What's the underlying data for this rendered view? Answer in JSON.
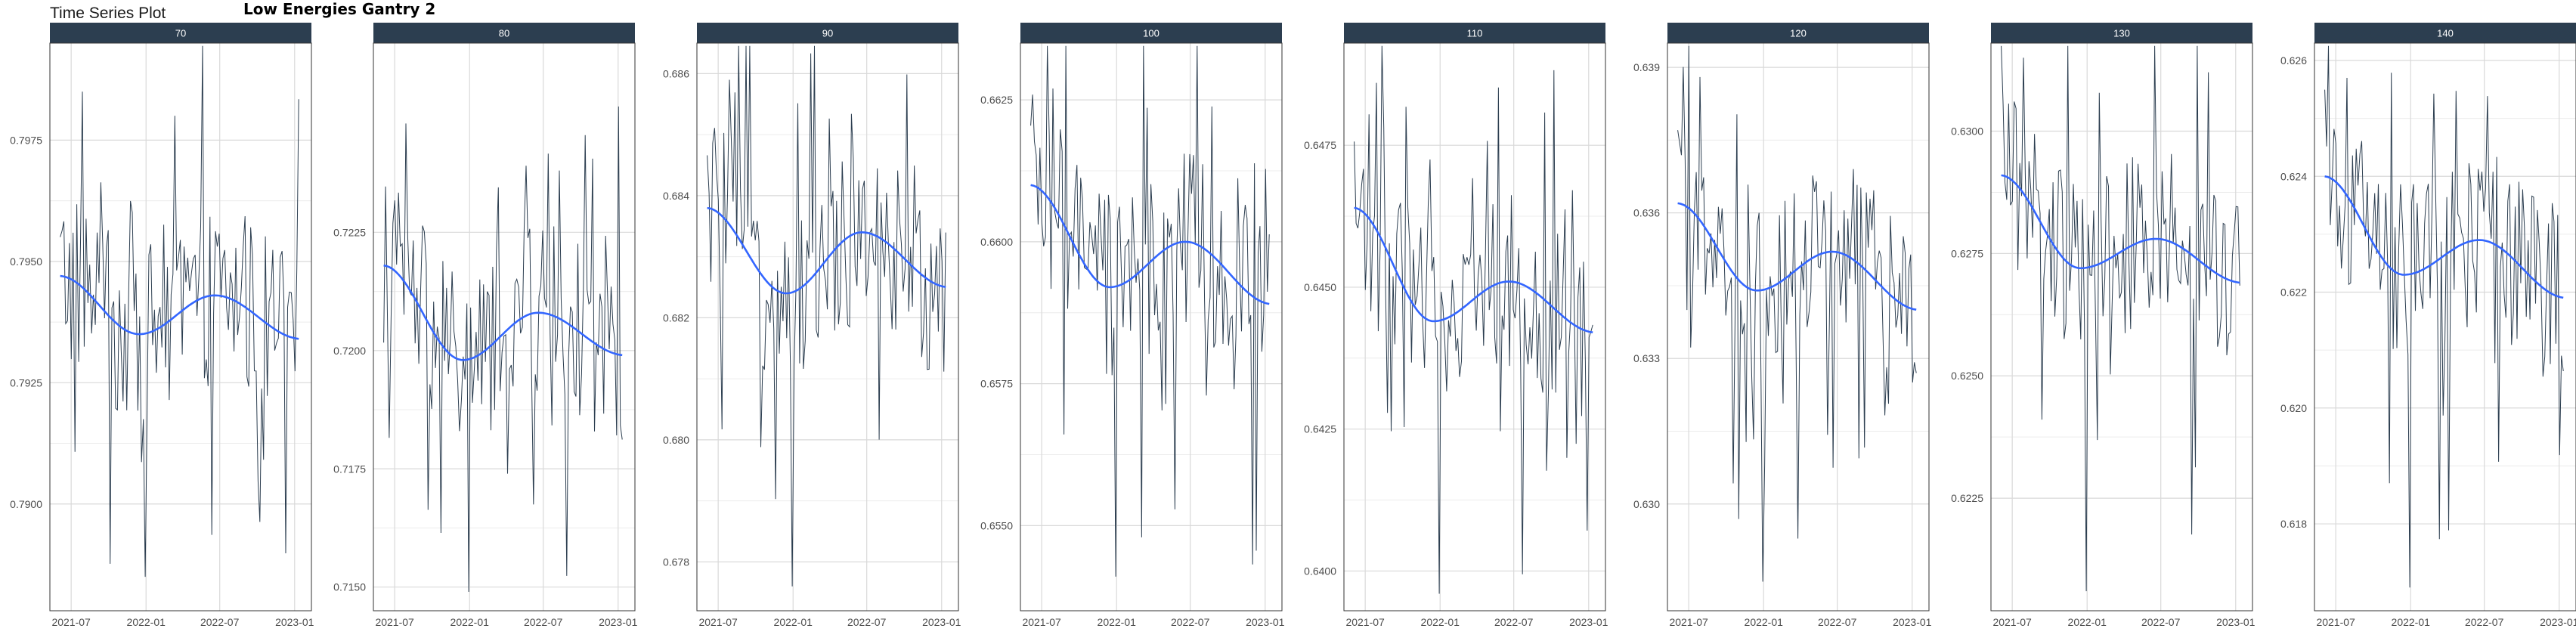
{
  "header": {
    "plot_title": "Time Series Plot",
    "overlay_title": "Low Energies Gantry 2"
  },
  "colors": {
    "strip_bg": "#2c3e50",
    "raw_line": "#2c3e50",
    "smooth_line": "#3366ff",
    "grid": "#d9d9d9",
    "panel_border": "#333333"
  },
  "chart_data": {
    "type": "line",
    "facet_by": "energy",
    "x_ticks": [
      "2021-07",
      "2022-01",
      "2022-07",
      "2023-01"
    ],
    "x_range": [
      "2021-06-01",
      "2023-01-20"
    ],
    "panels": [
      {
        "label": "70",
        "ylim": [
          0.7878,
          0.7995
        ],
        "y_ticks": [
          0.79,
          0.7925,
          0.795,
          0.7975
        ],
        "y_tick_labels": [
          "0.7900",
          "0.7925",
          "0.7950",
          "0.7975"
        ],
        "smooth_start": 0.7947,
        "smooth_trough": 0.7935,
        "smooth_peak": 0.7943,
        "smooth_end": 0.7934,
        "raw_min": 0.7885,
        "raw_max": 0.7985
      },
      {
        "label": "80",
        "ylim": [
          0.7145,
          0.7265
        ],
        "y_ticks": [
          0.715,
          0.7175,
          0.72,
          0.7225
        ],
        "y_tick_labels": [
          "0.7150",
          "0.7175",
          "0.7200",
          "0.7225"
        ],
        "smooth_start": 0.7218,
        "smooth_trough": 0.7198,
        "smooth_peak": 0.7208,
        "smooth_end": 0.7199,
        "raw_min": 0.7149,
        "raw_max": 0.7248
      },
      {
        "label": "90",
        "ylim": [
          0.6772,
          0.6865
        ],
        "y_ticks": [
          0.678,
          0.68,
          0.682,
          0.684,
          0.686
        ],
        "y_tick_labels": [
          "0.678",
          "0.680",
          "0.682",
          "0.684",
          "0.686"
        ],
        "smooth_start": 0.6838,
        "smooth_trough": 0.6824,
        "smooth_peak": 0.6834,
        "smooth_end": 0.6825,
        "raw_min": 0.6776,
        "raw_max": 0.6859
      },
      {
        "label": "100",
        "ylim": [
          0.6535,
          0.6635
        ],
        "y_ticks": [
          0.655,
          0.6575,
          0.66,
          0.6625
        ],
        "y_tick_labels": [
          "0.6550",
          "0.6575",
          "0.6600",
          "0.6625"
        ],
        "smooth_start": 0.661,
        "smooth_trough": 0.6592,
        "smooth_peak": 0.66,
        "smooth_end": 0.6589,
        "raw_min": 0.6541,
        "raw_max": 0.6627
      },
      {
        "label": "110",
        "ylim": [
          0.6393,
          0.6493
        ],
        "y_ticks": [
          0.64,
          0.6425,
          0.645,
          0.6475
        ],
        "y_tick_labels": [
          "0.6400",
          "0.6425",
          "0.6450",
          "0.6475"
        ],
        "smooth_start": 0.6464,
        "smooth_trough": 0.6444,
        "smooth_peak": 0.6451,
        "smooth_end": 0.6442,
        "raw_min": 0.6396,
        "raw_max": 0.6486
      },
      {
        "label": "120",
        "ylim": [
          0.6278,
          0.6395
        ],
        "y_ticks": [
          0.63,
          0.633,
          0.636,
          0.639
        ],
        "y_tick_labels": [
          "0.630",
          "0.633",
          "0.636",
          "0.639"
        ],
        "smooth_start": 0.6362,
        "smooth_trough": 0.6344,
        "smooth_peak": 0.6352,
        "smooth_end": 0.634,
        "raw_min": 0.6284,
        "raw_max": 0.6388
      },
      {
        "label": "130",
        "ylim": [
          0.6202,
          0.6318
        ],
        "y_ticks": [
          0.6225,
          0.625,
          0.6275,
          0.63
        ],
        "y_tick_labels": [
          "0.6225",
          "0.6250",
          "0.6275",
          "0.6300"
        ],
        "smooth_start": 0.6291,
        "smooth_trough": 0.6272,
        "smooth_peak": 0.6278,
        "smooth_end": 0.6269,
        "raw_min": 0.6206,
        "raw_max": 0.6315
      },
      {
        "label": "140",
        "ylim": [
          0.6165,
          0.6263
        ],
        "y_ticks": [
          0.618,
          0.62,
          0.622,
          0.624,
          0.626
        ],
        "y_tick_labels": [
          "0.618",
          "0.620",
          "0.622",
          "0.624",
          "0.626"
        ],
        "smooth_start": 0.624,
        "smooth_trough": 0.6223,
        "smooth_peak": 0.6229,
        "smooth_end": 0.6219,
        "raw_min": 0.6169,
        "raw_max": 0.6257
      }
    ]
  }
}
